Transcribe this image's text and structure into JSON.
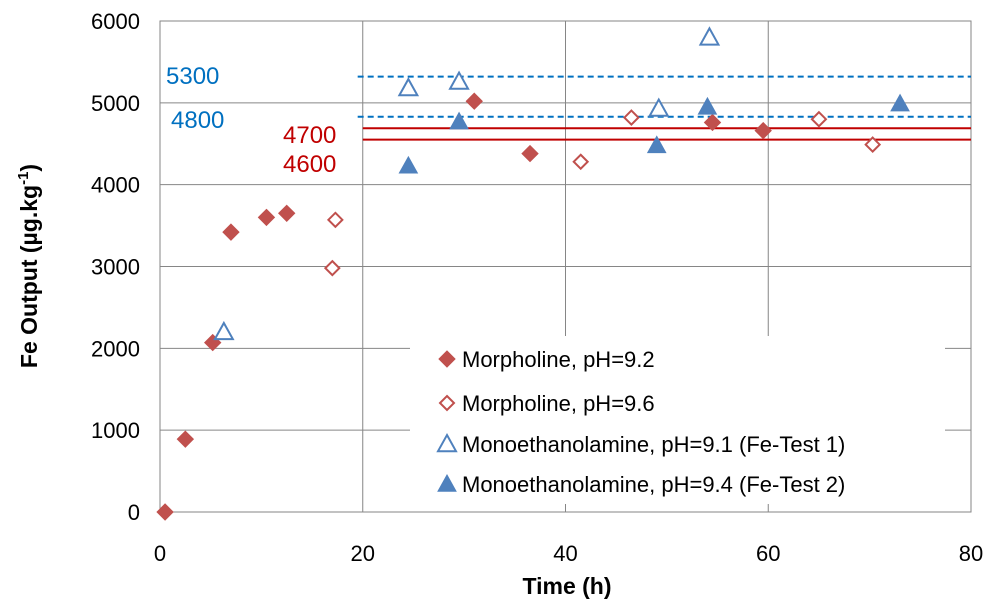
{
  "chart_data": {
    "type": "scatter",
    "title": "",
    "xlabel": "Time (h)",
    "ylabel_main": "Fe Output (µg.kg",
    "ylabel_sup": "-1",
    "ylabel_close": ")",
    "xlim": [
      0,
      80
    ],
    "ylim": [
      0,
      6000
    ],
    "x_ticks": [
      0,
      20,
      40,
      60,
      80
    ],
    "y_ticks": [
      0,
      1000,
      2000,
      3000,
      4000,
      5000,
      6000
    ],
    "grid": true,
    "legend_position": "bottom-right",
    "series": [
      {
        "name": "Morpholine, pH=9.2",
        "marker": "diamond-filled",
        "color": "#C0504D",
        "points": [
          [
            0.5,
            0
          ],
          [
            2.5,
            890
          ],
          [
            5.2,
            2070
          ],
          [
            7,
            3420
          ],
          [
            10.5,
            3600
          ],
          [
            12.5,
            3650
          ],
          [
            31,
            5020
          ],
          [
            36.5,
            4380
          ],
          [
            54.5,
            4760
          ],
          [
            59.5,
            4660
          ]
        ]
      },
      {
        "name": "Morpholine, pH=9.6",
        "marker": "diamond-open",
        "color": "#C0504D",
        "points": [
          [
            17,
            2980
          ],
          [
            17.3,
            3570
          ],
          [
            41.5,
            4280
          ],
          [
            46.5,
            4820
          ],
          [
            65,
            4800
          ],
          [
            70.3,
            4490
          ]
        ]
      },
      {
        "name": "Monoethanolamine, pH=9.1 (Fe-Test 1)",
        "marker": "triangle-open",
        "color": "#4F81BD",
        "points": [
          [
            6.3,
            2200
          ],
          [
            24.5,
            5180
          ],
          [
            29.5,
            5260
          ],
          [
            49.2,
            4930
          ],
          [
            54.2,
            5800
          ]
        ]
      },
      {
        "name": "Monoethanolamine, pH=9.4 (Fe-Test 2)",
        "marker": "triangle-filled",
        "color": "#4F81BD",
        "points": [
          [
            24.5,
            4230
          ],
          [
            29.5,
            4770
          ],
          [
            49,
            4480
          ],
          [
            54,
            4950
          ],
          [
            73,
            4990
          ]
        ]
      }
    ],
    "reference_lines": [
      {
        "label": "5300",
        "y": 5320,
        "x_from": 19.5,
        "x_to": 80,
        "style": "dashed",
        "color": "#0070C0"
      },
      {
        "label": "4800",
        "y": 4830,
        "x_from": 19.5,
        "x_to": 80,
        "style": "dashed",
        "color": "#0070C0"
      },
      {
        "label": "4700",
        "y": 4690,
        "x_from": 20,
        "x_to": 80,
        "style": "solid",
        "color": "#C00000"
      },
      {
        "label": "4600",
        "y": 4550,
        "x_from": 20,
        "x_to": 80,
        "style": "solid",
        "color": "#C00000"
      }
    ]
  }
}
